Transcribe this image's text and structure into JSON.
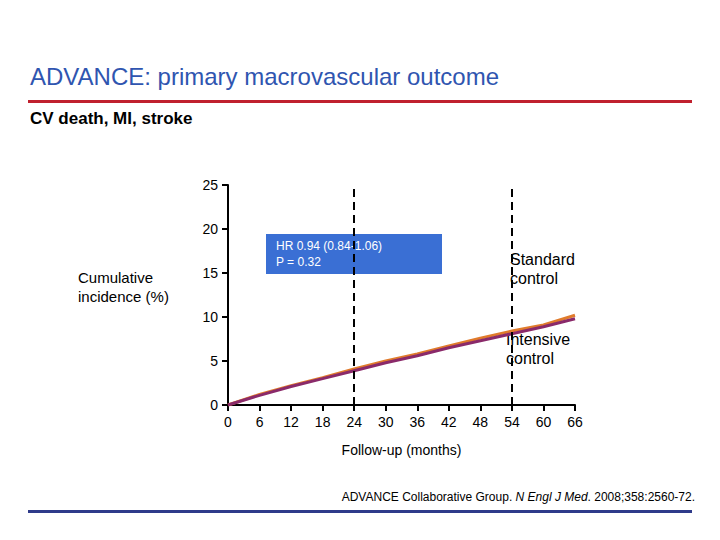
{
  "chart_data": {
    "type": "line",
    "title": "ADVANCE: primary macrovascular outcome",
    "subtitle": "CV death, MI, stroke",
    "x_label": "Follow-up (months)",
    "y_label": "Cumulative incidence (%)",
    "x": [
      0,
      6,
      12,
      18,
      24,
      30,
      36,
      42,
      48,
      54,
      60,
      66
    ],
    "series": [
      {
        "name": "Standard control",
        "color": "#e07b2c",
        "values": [
          0,
          1.2,
          2.2,
          3.1,
          4.1,
          5.0,
          5.8,
          6.7,
          7.6,
          8.4,
          9.1,
          10.2
        ]
      },
      {
        "name": "Intensive control",
        "color": "#8a2a6a",
        "values": [
          0,
          1.1,
          2.1,
          3.0,
          3.9,
          4.8,
          5.6,
          6.5,
          7.3,
          8.1,
          8.9,
          9.8
        ]
      }
    ],
    "xlim": [
      0,
      66
    ],
    "xticks": [
      0,
      6,
      12,
      18,
      24,
      30,
      36,
      42,
      48,
      54,
      60,
      66
    ],
    "ylim": [
      0,
      25
    ],
    "yticks": [
      0,
      5,
      10,
      15,
      20,
      25
    ],
    "vertical_lines": [
      24,
      54
    ],
    "annotation": "HR 0.94 (0.84-1.06)\nP = 0.32",
    "source": {
      "text": "ADVANCE Collaborative Group. N Engl J Med. 2008;358:2560-72.",
      "italic": "N Engl J Med"
    },
    "grid": false
  }
}
